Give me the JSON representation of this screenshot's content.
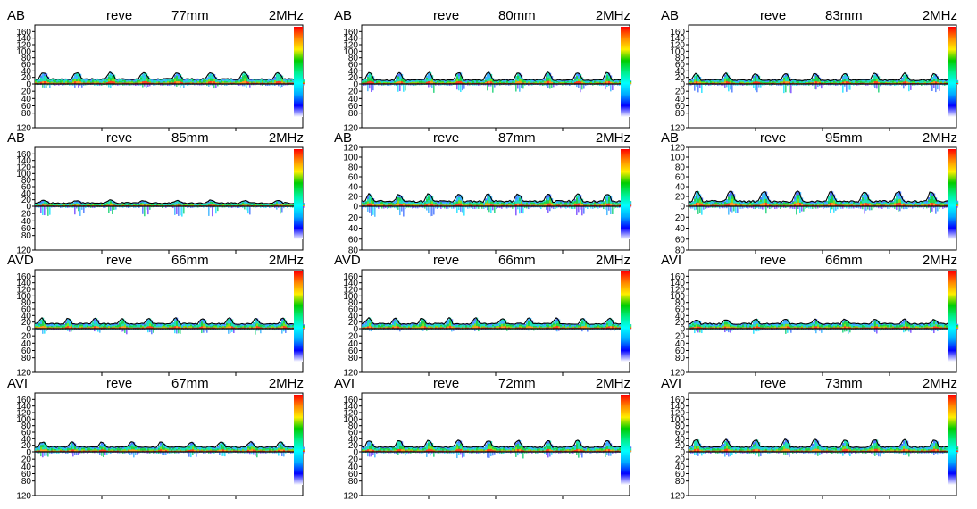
{
  "colors": {
    "background": "#ffffff",
    "axis": "#000000",
    "envelope": "#000000",
    "colorbar": [
      "#ff0000",
      "#ff8800",
      "#ffee00",
      "#00cc00",
      "#00ee88",
      "#00ffff",
      "#00aaff",
      "#0000ff",
      "#ffffff"
    ]
  },
  "chart_data": [
    {
      "type": "heatmap",
      "vessel": "AB",
      "mode": "reve",
      "depth": "77mm",
      "frequency": "2MHz",
      "y_ticks_top": [
        "160",
        "140",
        "120",
        "100",
        "80",
        "60",
        "40",
        "20",
        "0"
      ],
      "y_ticks_bottom": [
        "20",
        "40",
        "60",
        "80",
        "120"
      ],
      "ylim_positive": [
        0,
        180
      ],
      "ylim_negative": [
        0,
        120
      ],
      "beats": 8,
      "peak_velocity": 35,
      "baseline_velocity": 15,
      "reverse_depth": 8
    },
    {
      "type": "heatmap",
      "vessel": "AB",
      "mode": "reve",
      "depth": "80mm",
      "frequency": "2MHz",
      "y_ticks_top": [
        "160",
        "140",
        "120",
        "100",
        "80",
        "60",
        "40",
        "20",
        "0"
      ],
      "y_ticks_bottom": [
        "20",
        "40",
        "60",
        "80",
        "120"
      ],
      "ylim_positive": [
        0,
        180
      ],
      "ylim_negative": [
        0,
        120
      ],
      "beats": 9,
      "peak_velocity": 35,
      "baseline_velocity": 12,
      "reverse_depth": 20
    },
    {
      "type": "heatmap",
      "vessel": "AB",
      "mode": "reve",
      "depth": "83mm",
      "frequency": "2MHz",
      "y_ticks_top": [
        "160",
        "140",
        "120",
        "100",
        "80",
        "60",
        "40",
        "20",
        "0"
      ],
      "y_ticks_bottom": [
        "20",
        "40",
        "60",
        "80",
        "120"
      ],
      "ylim_positive": [
        0,
        180
      ],
      "ylim_negative": [
        0,
        120
      ],
      "beats": 9,
      "peak_velocity": 32,
      "baseline_velocity": 12,
      "reverse_depth": 22
    },
    {
      "type": "heatmap",
      "vessel": "AB",
      "mode": "reve",
      "depth": "85mm",
      "frequency": "2MHz",
      "y_ticks_top": [
        "160",
        "140",
        "120",
        "100",
        "80",
        "60",
        "40",
        "20",
        "0"
      ],
      "y_ticks_bottom": [
        "20",
        "40",
        "60",
        "80",
        "120"
      ],
      "ylim_positive": [
        0,
        180
      ],
      "ylim_negative": [
        0,
        120
      ],
      "beats": 8,
      "peak_velocity": 18,
      "baseline_velocity": 10,
      "reverse_depth": 25
    },
    {
      "type": "heatmap",
      "vessel": "AB",
      "mode": "reve",
      "depth": "87mm",
      "frequency": "2MHz",
      "y_ticks_top": [
        "120",
        "100",
        "80",
        "60",
        "40",
        "20",
        "0"
      ],
      "y_ticks_bottom": [
        "20",
        "40",
        "60",
        "80"
      ],
      "ylim_positive": [
        0,
        120
      ],
      "ylim_negative": [
        0,
        80
      ],
      "beats": 9,
      "peak_velocity": 25,
      "baseline_velocity": 10,
      "reverse_depth": 15
    },
    {
      "type": "heatmap",
      "vessel": "AB",
      "mode": "reve",
      "depth": "95mm",
      "frequency": "2MHz",
      "y_ticks_top": [
        "120",
        "100",
        "80",
        "60",
        "40",
        "20",
        "0"
      ],
      "y_ticks_bottom": [
        "20",
        "40",
        "60",
        "80"
      ],
      "ylim_positive": [
        0,
        120
      ],
      "ylim_negative": [
        0,
        80
      ],
      "beats": 8,
      "peak_velocity": 30,
      "baseline_velocity": 10,
      "reverse_depth": 12
    },
    {
      "type": "heatmap",
      "vessel": "AVD",
      "mode": "reve",
      "depth": "66mm",
      "frequency": "2MHz",
      "y_ticks_top": [
        "160",
        "140",
        "120",
        "100",
        "80",
        "60",
        "40",
        "20",
        "0"
      ],
      "y_ticks_bottom": [
        "20",
        "40",
        "60",
        "80",
        "120"
      ],
      "ylim_positive": [
        0,
        180
      ],
      "ylim_negative": [
        0,
        120
      ],
      "beats": 10,
      "peak_velocity": 32,
      "baseline_velocity": 15,
      "reverse_depth": 12
    },
    {
      "type": "heatmap",
      "vessel": "AVD",
      "mode": "reve",
      "depth": "66mm",
      "frequency": "2MHz",
      "y_ticks_top": [
        "160",
        "140",
        "120",
        "100",
        "80",
        "60",
        "40",
        "20",
        "0"
      ],
      "y_ticks_bottom": [
        "20",
        "40",
        "60",
        "80",
        "120"
      ],
      "ylim_positive": [
        0,
        180
      ],
      "ylim_negative": [
        0,
        120
      ],
      "beats": 10,
      "peak_velocity": 32,
      "baseline_velocity": 15,
      "reverse_depth": 5
    },
    {
      "type": "heatmap",
      "vessel": "AVI",
      "mode": "reve",
      "depth": "66mm",
      "frequency": "2MHz",
      "y_ticks_top": [
        "160",
        "140",
        "120",
        "100",
        "80",
        "60",
        "40",
        "20",
        "0"
      ],
      "y_ticks_bottom": [
        "20",
        "40",
        "60",
        "80",
        "120"
      ],
      "ylim_positive": [
        0,
        180
      ],
      "ylim_negative": [
        0,
        120
      ],
      "beats": 9,
      "peak_velocity": 28,
      "baseline_velocity": 15,
      "reverse_depth": 10
    },
    {
      "type": "heatmap",
      "vessel": "AVI",
      "mode": "reve",
      "depth": "67mm",
      "frequency": "2MHz",
      "y_ticks_top": [
        "160",
        "140",
        "120",
        "100",
        "80",
        "60",
        "40",
        "20",
        "0"
      ],
      "y_ticks_bottom": [
        "20",
        "40",
        "60",
        "80",
        "120"
      ],
      "ylim_positive": [
        0,
        180
      ],
      "ylim_negative": [
        0,
        120
      ],
      "beats": 9,
      "peak_velocity": 30,
      "baseline_velocity": 15,
      "reverse_depth": 12
    },
    {
      "type": "heatmap",
      "vessel": "AVI",
      "mode": "reve",
      "depth": "72mm",
      "frequency": "2MHz",
      "y_ticks_top": [
        "160",
        "140",
        "120",
        "100",
        "80",
        "60",
        "40",
        "20",
        "0"
      ],
      "y_ticks_bottom": [
        "20",
        "40",
        "60",
        "80",
        "120"
      ],
      "ylim_positive": [
        0,
        180
      ],
      "ylim_negative": [
        0,
        120
      ],
      "beats": 9,
      "peak_velocity": 35,
      "baseline_velocity": 15,
      "reverse_depth": 15
    },
    {
      "type": "heatmap",
      "vessel": "AVI",
      "mode": "reve",
      "depth": "73mm",
      "frequency": "2MHz",
      "y_ticks_top": [
        "160",
        "140",
        "120",
        "100",
        "80",
        "60",
        "40",
        "20",
        "0"
      ],
      "y_ticks_bottom": [
        "20",
        "40",
        "60",
        "80",
        "120"
      ],
      "ylim_positive": [
        0,
        180
      ],
      "ylim_negative": [
        0,
        120
      ],
      "beats": 9,
      "peak_velocity": 38,
      "baseline_velocity": 15,
      "reverse_depth": 10
    }
  ]
}
